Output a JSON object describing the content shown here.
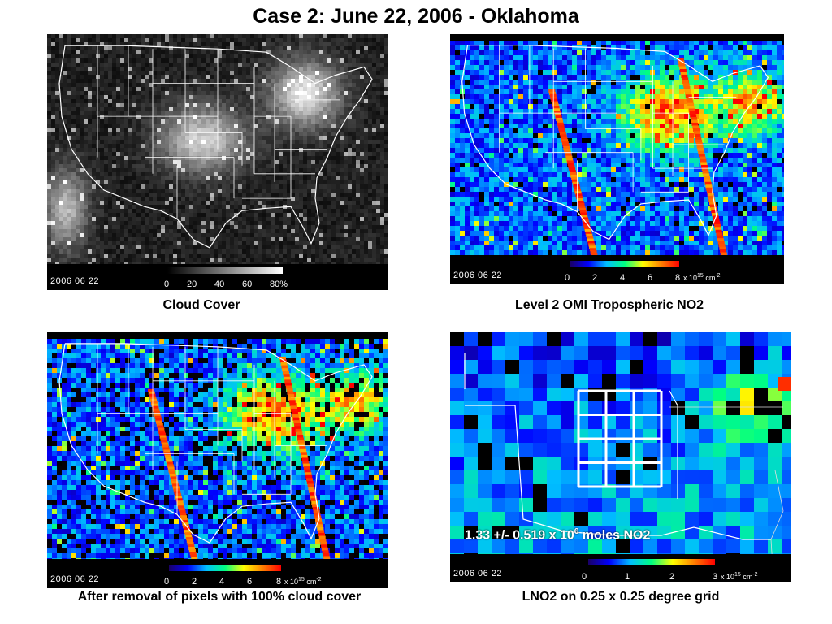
{
  "title": "Case 2:  June 22, 2006 - Oklahoma",
  "panels": {
    "cloud": {
      "date": "2006 06 22",
      "colorbar_ticks": [
        "0",
        "20",
        "40",
        "60",
        "80%"
      ],
      "caption": "Cloud Cover"
    },
    "omi": {
      "date": "2006 06 22",
      "colorbar_ticks": [
        "0",
        "2",
        "4",
        "6",
        "8"
      ],
      "colorbar_unit": "x 10",
      "colorbar_exp": "15",
      "colorbar_unit_tail": " cm",
      "colorbar_unit_exp": "-2",
      "caption": "Level 2 OMI Tropospheric NO2"
    },
    "filtered": {
      "date": "2006 06 22",
      "colorbar_ticks": [
        "0",
        "2",
        "4",
        "6",
        "8"
      ],
      "colorbar_unit": "x 10",
      "colorbar_exp": "15",
      "colorbar_unit_tail": " cm",
      "colorbar_unit_exp": "-2",
      "caption": "After removal of pixels with 100% cloud cover"
    },
    "lno2": {
      "date": "2006 06 22",
      "colorbar_ticks": [
        "0",
        "1",
        "2",
        "3"
      ],
      "colorbar_unit": "x 10",
      "colorbar_exp": "15",
      "colorbar_unit_tail": " cm",
      "colorbar_unit_exp": "-2",
      "annotation_pre": "1.33 +/- 0.519 x 10",
      "annotation_exp": "6",
      "annotation_post": " moles NO2",
      "caption": "LNO2 on 0.25 x 0.25 degree grid"
    }
  },
  "colors": {
    "state_lines": "#ffffff",
    "background": "#000000"
  }
}
